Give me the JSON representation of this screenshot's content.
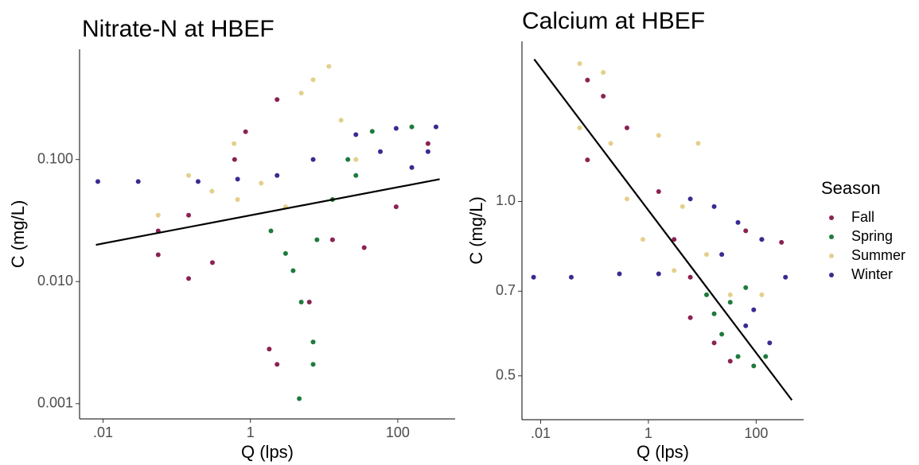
{
  "chart_data": [
    {
      "type": "scatter",
      "title": "Nitrate-N at HBEF",
      "x_label": "Q (lps)",
      "y_label": "C (mg/L)",
      "xscale": "log",
      "yscale": "log",
      "xlim": [
        0.0048,
        600
      ],
      "ylim": [
        0.00075,
        0.8
      ],
      "xticks": [
        {
          "value": 0.01,
          "label": ".01"
        },
        1,
        100
      ],
      "yticks": [
        {
          "value": 0.1,
          "label": "0.100"
        },
        {
          "value": 0.01,
          "label": "0.010"
        },
        {
          "value": 0.001,
          "label": "0.001"
        }
      ],
      "series": [
        {
          "name": "Fall",
          "color": "#8b2252",
          "x": [
            0.056,
            0.056,
            0.145,
            0.145,
            0.305,
            0.61,
            0.86,
            2.3,
            1.8,
            2.3,
            13,
            35,
            95,
            257,
            6.3
          ],
          "values": [
            0.026,
            0.0166,
            0.0106,
            0.035,
            0.0143,
            0.1,
            0.169,
            0.31,
            0.0028,
            0.0021,
            0.022,
            0.019,
            0.041,
            0.135,
            0.0068
          ]
        },
        {
          "name": "Spring",
          "color": "#1e7b3c",
          "x": [
            1.9,
            3.8,
            4.9,
            7.1,
            7.1,
            4.6,
            13,
            21,
            45,
            155,
            8,
            3,
            27
          ],
          "values": [
            0.026,
            0.0123,
            0.0068,
            0.0032,
            0.0021,
            0.0011,
            0.047,
            0.1,
            0.17,
            0.185,
            0.022,
            0.017,
            0.074
          ]
        },
        {
          "name": "Summer",
          "color": "#e3d08a",
          "x": [
            0.056,
            0.145,
            0.3,
            0.6,
            1.4,
            4.9,
            7.1,
            11.6,
            17,
            27,
            95,
            3,
            0.67
          ],
          "values": [
            0.035,
            0.074,
            0.055,
            0.135,
            0.064,
            0.35,
            0.45,
            0.58,
            0.21,
            0.1,
            0.18,
            0.041,
            0.047
          ]
        },
        {
          "name": "Winter",
          "color": "#3b2a91",
          "x": [
            0.0085,
            0.03,
            0.195,
            0.67,
            2.3,
            7.1,
            27,
            95,
            330,
            58,
            155,
            257
          ],
          "values": [
            0.066,
            0.066,
            0.066,
            0.069,
            0.074,
            0.1,
            0.16,
            0.18,
            0.185,
            0.116,
            0.086,
            0.116
          ]
        }
      ],
      "fit_line": {
        "x": [
          0.008,
          370
        ],
        "y": [
          0.02,
          0.069
        ]
      }
    },
    {
      "type": "scatter",
      "title": "Calcium at HBEF",
      "x_label": "Q (lps)",
      "y_label": "C (mg/L)",
      "xscale": "log",
      "yscale": "log",
      "xlim": [
        0.0045,
        760
      ],
      "ylim": [
        0.42,
        1.89
      ],
      "xticks": [
        {
          "value": 0.01,
          "label": ".01"
        },
        1,
        100
      ],
      "yticks": [
        {
          "value": 1,
          "label": "1.0"
        },
        0.7,
        0.5
      ],
      "legend_title": "Season",
      "series": [
        {
          "name": "Fall",
          "color": "#8b2252",
          "x": [
            0.074,
            0.074,
            0.4,
            0.145,
            1.55,
            3,
            6,
            16.6,
            33,
            127,
            295,
            64,
            6
          ],
          "values": [
            1.62,
            1.18,
            1.34,
            1.52,
            1.04,
            0.86,
            0.63,
            0.57,
            0.53,
            0.86,
            0.85,
            0.89,
            0.74
          ]
        },
        {
          "name": "Spring",
          "color": "#1e7b3c",
          "x": [
            12,
            23,
            46,
            90,
            150,
            33,
            64,
            16.6
          ],
          "values": [
            0.69,
            0.59,
            0.54,
            0.52,
            0.54,
            0.67,
            0.71,
            0.64
          ]
        },
        {
          "name": "Summer",
          "color": "#e3d08a",
          "x": [
            0.053,
            0.053,
            0.145,
            0.2,
            0.4,
            0.79,
            1.55,
            4.3,
            12,
            33,
            127,
            8.4,
            3
          ],
          "values": [
            1.73,
            1.34,
            1.67,
            1.26,
            1.01,
            0.86,
            1.3,
            0.98,
            0.81,
            0.69,
            0.69,
            1.26,
            0.76
          ]
        },
        {
          "name": "Winter",
          "color": "#3b2a91",
          "x": [
            0.0074,
            0.037,
            0.29,
            1.55,
            6,
            16.6,
            46,
            127,
            64,
            178,
            350,
            23,
            90
          ],
          "values": [
            0.74,
            0.74,
            0.75,
            0.75,
            1.01,
            0.98,
            0.92,
            0.86,
            0.61,
            0.57,
            0.74,
            0.81,
            0.65
          ]
        }
      ],
      "fit_line": {
        "x": [
          0.0076,
          460
        ],
        "y": [
          1.76,
          0.454
        ]
      }
    }
  ]
}
